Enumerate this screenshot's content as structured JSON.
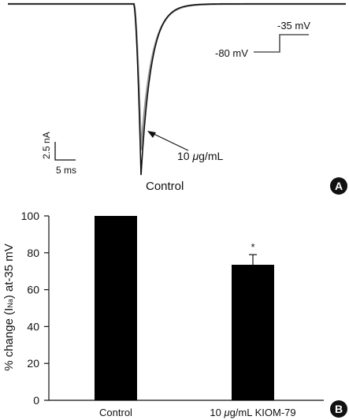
{
  "panel_a": {
    "badge": "A",
    "traces": [
      {
        "name": "Control",
        "peak_nA": -17.8
      },
      {
        "name": "10 μg/mL",
        "peak_nA": -15.2
      }
    ],
    "scale_bar": {
      "current_label": "2.5 nA",
      "time_label": "5 ms"
    },
    "protocol": {
      "holding_label": "-80 mV",
      "step_label": "-35 mV"
    },
    "trace_labels": {
      "control": "Control",
      "drug_prefix": "10 ",
      "drug_mu": "μ",
      "drug_suffix": "g/mL"
    }
  },
  "panel_b": {
    "badge": "B"
  },
  "chart_data": {
    "type": "bar",
    "categories": [
      "Control",
      "10 μg/mL KIOM-79"
    ],
    "category_parts": [
      {
        "prefix": "Control",
        "mu": "",
        "suffix": ""
      },
      {
        "prefix": "10 ",
        "mu": "μ",
        "suffix": "g/mL KIOM-79"
      }
    ],
    "values": [
      100,
      73.5
    ],
    "error": [
      0,
      5.5
    ],
    "significance": [
      "",
      "*"
    ],
    "ylabel_parts": {
      "prefix": "% change (I",
      "sub": "Na",
      "suffix": ") at-35 mV"
    },
    "ylim": [
      0,
      100
    ],
    "yticks": [
      0,
      20,
      40,
      60,
      80,
      100
    ],
    "bar_color": "#000000",
    "grid": false
  }
}
